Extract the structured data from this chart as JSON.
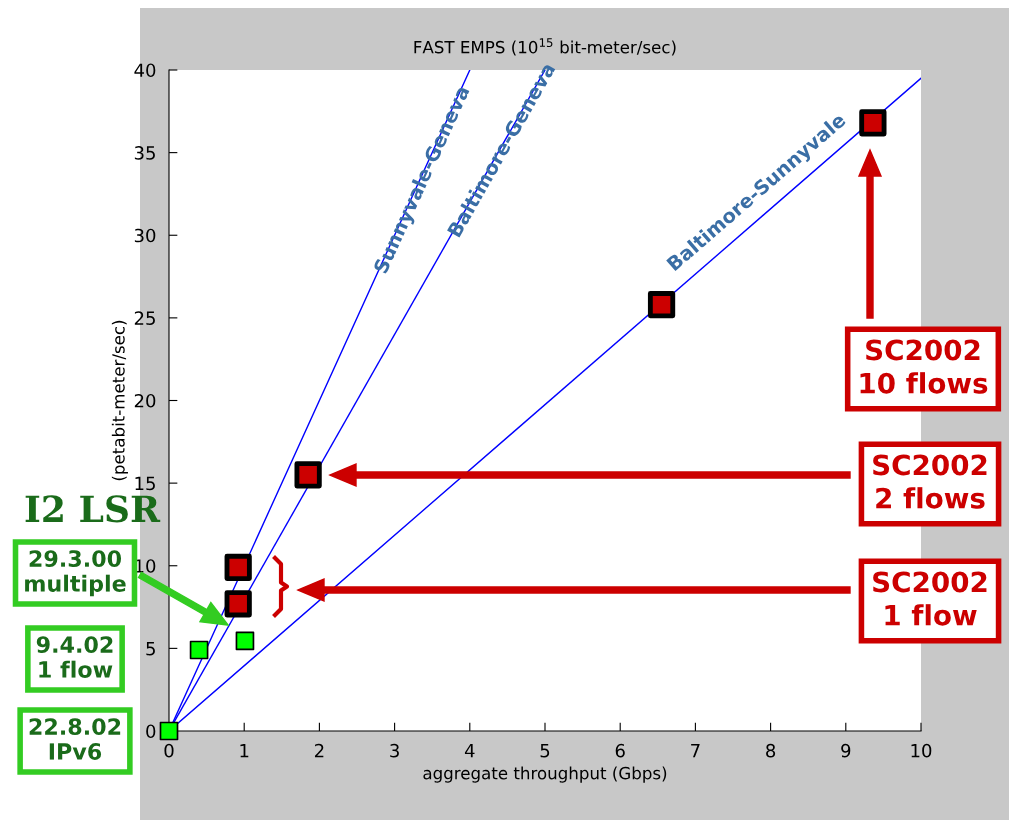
{
  "chart_data": {
    "type": "scatter",
    "title": "FAST EMPS (10$^{15}$ bit-meter/sec)",
    "xlabel": "aggregate throughput (Gbps)",
    "ylabel": "(petabit-meter/sec)",
    "xlim": [
      0,
      10
    ],
    "ylim": [
      0,
      40
    ],
    "xticks": [
      0,
      1,
      2,
      3,
      4,
      5,
      6,
      7,
      8,
      9,
      10
    ],
    "yticks": [
      0,
      5,
      10,
      15,
      20,
      25,
      30,
      35,
      40
    ],
    "grid": false,
    "legend": false,
    "marker": "square",
    "series": [
      {
        "type": "line",
        "name": "Sunnyvale-Geneva",
        "color": "#0000ff",
        "marker": "none",
        "x": [
          0,
          4
        ],
        "values": [
          0,
          40
        ]
      },
      {
        "type": "line",
        "name": "Baltimore-Geneva",
        "color": "#0000ff",
        "marker": "none",
        "x": [
          0,
          5
        ],
        "values": [
          0,
          40
        ]
      },
      {
        "type": "line",
        "name": "Baltimore-Sunnyvale",
        "color": "#0000ff",
        "marker": "none",
        "x": [
          0,
          10
        ],
        "values": [
          0,
          39.5
        ]
      },
      {
        "color": "#cc0000",
        "x": [
          0.92,
          0.92,
          1.85,
          6.55,
          9.36
        ],
        "values": [
          7.7,
          9.9,
          15.5,
          25.8,
          36.8
        ]
      },
      {
        "color": "#00ff00",
        "x": [
          0,
          0.4,
          1.01
        ],
        "values": [
          0,
          4.9,
          5.45
        ]
      }
    ],
    "annotations": [
      "SC2002\n10 flows",
      "SC2002\n2 flows",
      "SC2002\n1 flow",
      "I2 LSR",
      "29.3.00\nmultiple",
      "9.4.02\n1 flow",
      "22.8.02\nIPv6"
    ]
  }
}
